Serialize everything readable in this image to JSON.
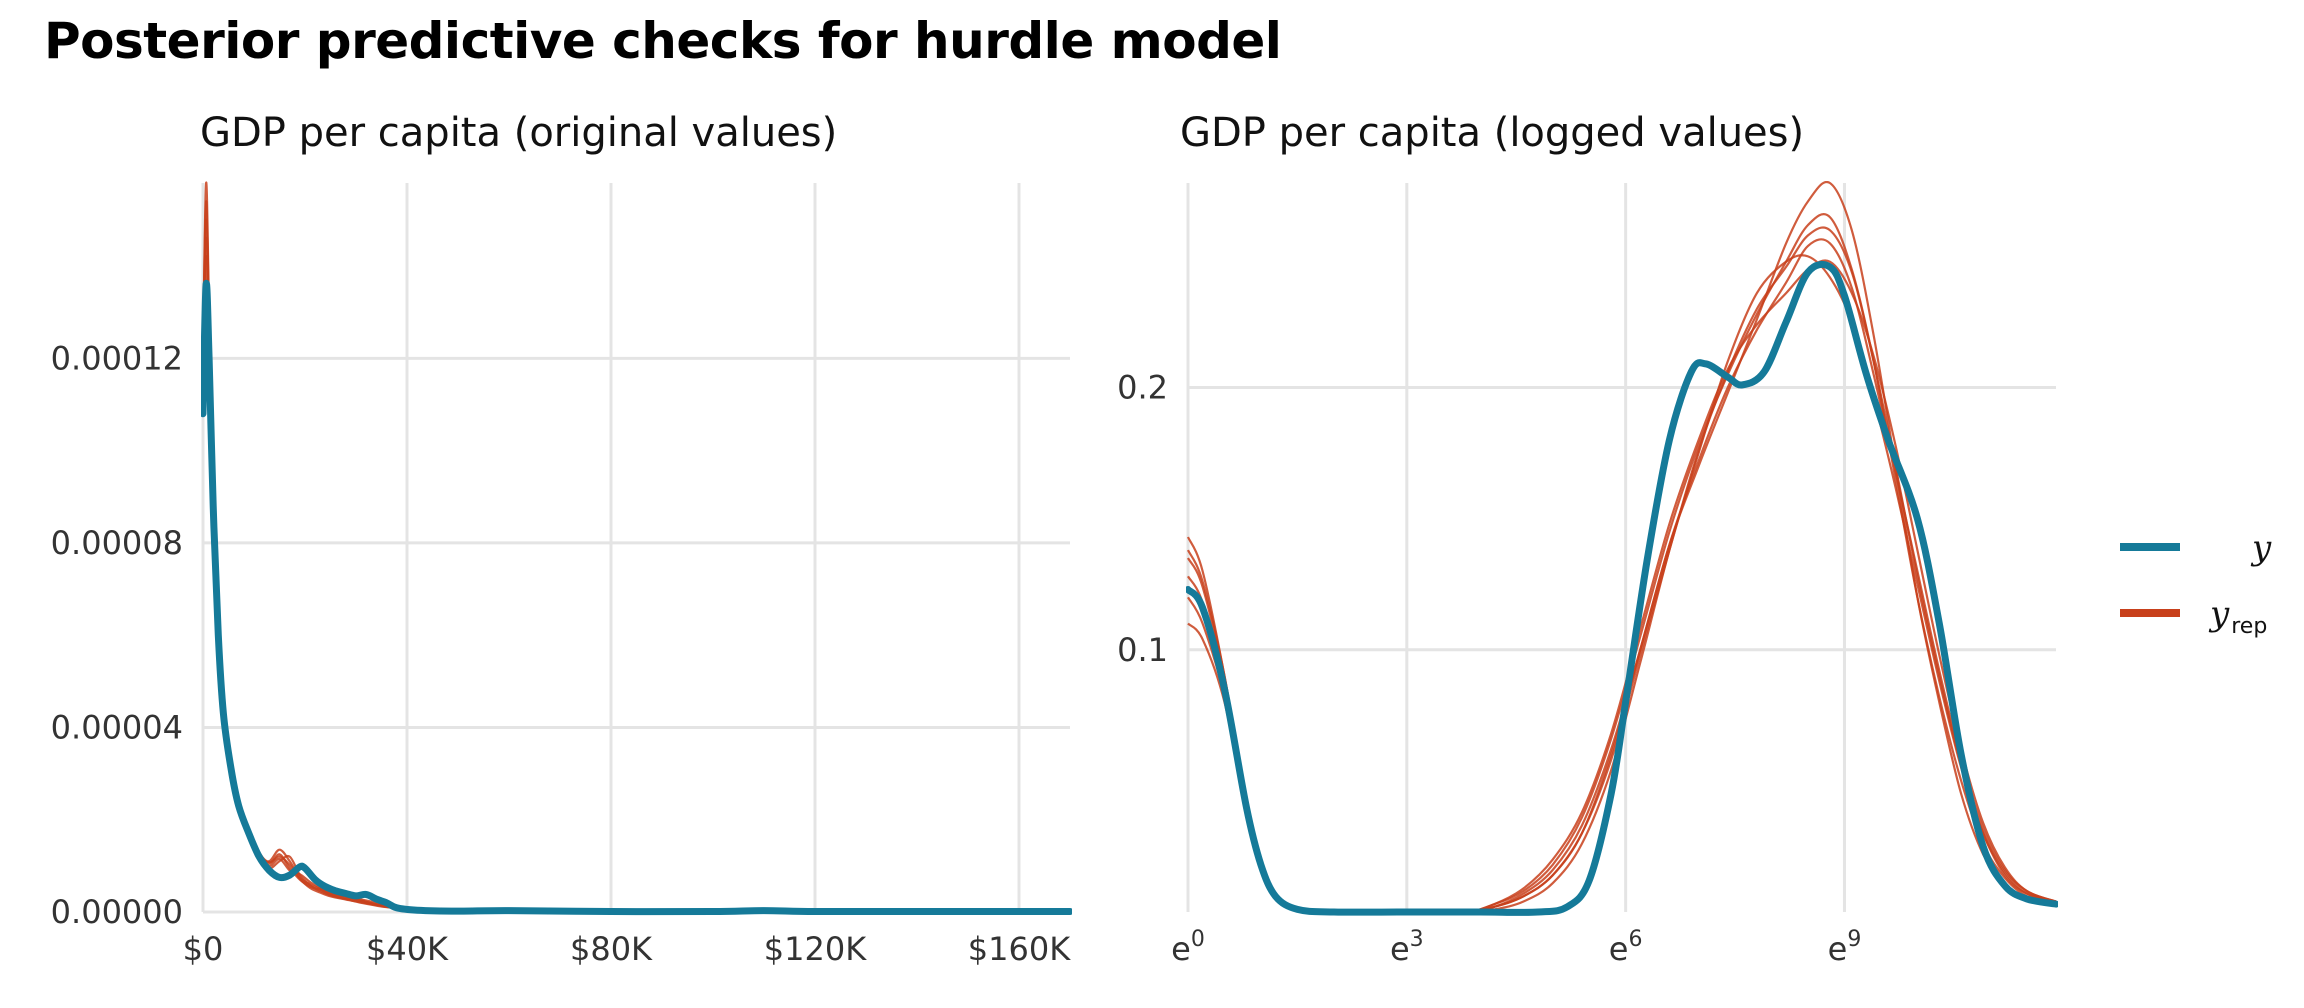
{
  "title": "Posterior predictive checks for hurdle model",
  "colors": {
    "y": "#157a99",
    "yrep": "#c8401b",
    "grid": "#e4e4e4"
  },
  "legend": {
    "position": "right",
    "items": [
      {
        "key": "y",
        "label": "y",
        "subscript": ""
      },
      {
        "key": "yrep",
        "label": "y",
        "subscript": "rep"
      }
    ]
  },
  "chart_data": [
    {
      "type": "line",
      "subtitle": "GDP per capita (original values)",
      "xlabel": "",
      "ylabel": "",
      "xlim": [
        0,
        170000
      ],
      "ylim": [
        0,
        0.000158
      ],
      "grid": true,
      "x_ticks": [
        {
          "value": 0,
          "label": "$0"
        },
        {
          "value": 40000,
          "label": "$40K"
        },
        {
          "value": 80000,
          "label": "$80K"
        },
        {
          "value": 120000,
          "label": "$120K"
        },
        {
          "value": 160000,
          "label": "$160K"
        }
      ],
      "y_ticks": [
        {
          "value": 0,
          "label": "0.00000"
        },
        {
          "value": 4e-05,
          "label": "0.00004"
        },
        {
          "value": 8e-05,
          "label": "0.00008"
        },
        {
          "value": 0.00012,
          "label": "0.00012"
        }
      ],
      "series_y": {
        "name": "y",
        "x": [
          0,
          600,
          1200,
          2000,
          3000,
          4000,
          5500,
          7000,
          9000,
          11000,
          13000,
          15000,
          17000,
          19000,
          20000,
          22000,
          24000,
          26000,
          28000,
          30000,
          32000,
          34000,
          36000,
          38000,
          42000,
          50000,
          60000,
          80000,
          100000,
          110000,
          120000,
          140000,
          170000
        ],
        "values": [
          0.000108,
          0.000136,
          0.00012,
          8.8e-05,
          6e-05,
          4.3e-05,
          3.1e-05,
          2.3e-05,
          1.7e-05,
          1.2e-05,
          9e-06,
          7.5e-06,
          8e-06,
          9.8e-06,
          9.5e-06,
          7e-06,
          5.5e-06,
          4.6e-06,
          4e-06,
          3.5e-06,
          3.8e-06,
          2.8e-06,
          2e-06,
          9e-07,
          4e-07,
          2e-07,
          3e-07,
          1e-07,
          1e-07,
          3e-07,
          1e-07,
          1e-07,
          1e-07
        ]
      },
      "series_yrep": [
        {
          "x": [
            0,
            600,
            1200,
            2000,
            3000,
            4000,
            5500,
            7000,
            9000,
            11000,
            13000,
            15000,
            17000,
            19000,
            21000,
            23000,
            25000,
            28000,
            31000,
            35000,
            40000,
            50000,
            70000,
            100000,
            170000
          ],
          "values": [
            0.00012,
            0.000158,
            0.00013,
            9.2e-05,
            6.2e-05,
            4.4e-05,
            3.2e-05,
            2.4e-05,
            1.8e-05,
            1.3e-05,
            1.05e-05,
            1.25e-05,
            9.5e-06,
            7e-06,
            5.5e-06,
            4.8e-06,
            3.8e-06,
            3e-06,
            2.4e-06,
            1.4e-06,
            6e-07,
            3e-07,
            1e-07,
            1e-07,
            1e-07
          ]
        },
        {
          "x": [
            0,
            600,
            1200,
            2000,
            3000,
            4000,
            5500,
            7000,
            9000,
            11000,
            13000,
            15000,
            17000,
            19000,
            21000,
            23000,
            25000,
            28000,
            31000,
            35000,
            40000,
            50000,
            70000,
            100000,
            170000
          ],
          "values": [
            0.000118,
            0.00015,
            0.000126,
            9e-05,
            6.1e-05,
            4.3e-05,
            3.1e-05,
            2.3e-05,
            1.7e-05,
            1.2e-05,
            1.1e-05,
            1.35e-05,
            1.1e-05,
            7.5e-06,
            6e-06,
            5e-06,
            4e-06,
            3.3e-06,
            2.5e-06,
            1.5e-06,
            7e-07,
            4e-07,
            2e-07,
            1e-07,
            1e-07
          ]
        },
        {
          "x": [
            0,
            600,
            1200,
            2000,
            3000,
            4000,
            5500,
            7000,
            9000,
            11000,
            13000,
            15000,
            17000,
            19000,
            21000,
            23000,
            25000,
            28000,
            31000,
            35000,
            40000,
            50000,
            70000,
            100000,
            170000
          ],
          "values": [
            0.000112,
            0.000142,
            0.000122,
            8.9e-05,
            6e-05,
            4.2e-05,
            3e-05,
            2.2e-05,
            1.65e-05,
            1.2e-05,
            9.5e-06,
            1.1e-05,
            1.2e-05,
            8e-06,
            5.8e-06,
            4.5e-06,
            3.6e-06,
            2.8e-06,
            2e-06,
            1.2e-06,
            6e-07,
            3e-07,
            1e-07,
            1e-07,
            1e-07
          ]
        },
        {
          "x": [
            0,
            600,
            1200,
            2000,
            3000,
            4000,
            5500,
            7000,
            9000,
            11000,
            13000,
            15000,
            17000,
            19000,
            21000,
            23000,
            25000,
            28000,
            31000,
            35000,
            40000,
            50000,
            70000,
            100000,
            170000
          ],
          "values": [
            0.000115,
            0.000146,
            0.000124,
            8.9e-05,
            6.1e-05,
            4.3e-05,
            3.1e-05,
            2.3e-05,
            1.7e-05,
            1.25e-05,
            1e-05,
            1.15e-05,
            9e-06,
            8.2e-06,
            6.5e-06,
            5.2e-06,
            4.2e-06,
            3.4e-06,
            2.7e-06,
            1.8e-06,
            8e-07,
            4e-07,
            2e-07,
            1e-07,
            1e-07
          ]
        },
        {
          "x": [
            0,
            600,
            1200,
            2000,
            3000,
            4000,
            5500,
            7000,
            9000,
            11000,
            13000,
            15000,
            17000,
            19000,
            21000,
            23000,
            25000,
            28000,
            31000,
            35000,
            40000,
            50000,
            70000,
            100000,
            170000
          ],
          "values": [
            0.000121,
            0.000154,
            0.000128,
            9.1e-05,
            6.2e-05,
            4.4e-05,
            3.2e-05,
            2.4e-05,
            1.75e-05,
            1.28e-05,
            1.08e-05,
            1.2e-05,
            1.02e-05,
            7.2e-06,
            5.2e-06,
            4.2e-06,
            3.4e-06,
            2.7e-06,
            2.1e-06,
            1.3e-06,
            6e-07,
            3e-07,
            1e-07,
            1e-07,
            1e-07
          ]
        }
      ]
    },
    {
      "type": "line",
      "subtitle": "GDP per capita (logged values)",
      "xlabel": "",
      "ylabel": "",
      "xlim": [
        0,
        11.9
      ],
      "ylim": [
        0,
        0.278
      ],
      "x_scale": "log (e-based tick labels)",
      "grid": true,
      "x_ticks": [
        {
          "value": 0,
          "label": "e",
          "exponent": "0"
        },
        {
          "value": 3,
          "label": "e",
          "exponent": "3"
        },
        {
          "value": 6,
          "label": "e",
          "exponent": "6"
        },
        {
          "value": 9,
          "label": "e",
          "exponent": "9"
        }
      ],
      "y_ticks": [
        {
          "value": 0.1,
          "label": "0.1"
        },
        {
          "value": 0.2,
          "label": "0.2"
        }
      ],
      "series_y": {
        "name": "y",
        "x": [
          0,
          0.2,
          0.5,
          0.8,
          1.0,
          1.2,
          1.5,
          2.0,
          3.0,
          4.0,
          4.8,
          5.2,
          5.5,
          5.8,
          6.0,
          6.3,
          6.6,
          6.9,
          7.1,
          7.4,
          7.6,
          7.9,
          8.2,
          8.5,
          8.8,
          9.0,
          9.3,
          9.6,
          10.0,
          10.3,
          10.6,
          10.9,
          11.2,
          11.5,
          11.9
        ],
        "values": [
          0.123,
          0.116,
          0.085,
          0.04,
          0.018,
          0.006,
          0.001,
          0.0,
          0.0,
          0.0,
          0.0,
          0.002,
          0.012,
          0.045,
          0.08,
          0.135,
          0.18,
          0.206,
          0.209,
          0.204,
          0.201,
          0.206,
          0.225,
          0.244,
          0.246,
          0.235,
          0.205,
          0.18,
          0.15,
          0.11,
          0.06,
          0.025,
          0.01,
          0.005,
          0.003
        ]
      },
      "series_yrep": [
        {
          "x": [
            0,
            0.2,
            0.5,
            0.8,
            1.0,
            1.2,
            1.5,
            2.0,
            3.0,
            3.8,
            4.2,
            4.6,
            5.0,
            5.4,
            5.8,
            6.2,
            6.6,
            7.0,
            7.4,
            7.8,
            8.2,
            8.5,
            8.8,
            9.1,
            9.4,
            9.7,
            10.0,
            10.3,
            10.6,
            10.9,
            11.2,
            11.5,
            11.9
          ],
          "values": [
            0.143,
            0.13,
            0.09,
            0.042,
            0.018,
            0.006,
            0.001,
            0.0,
            0.0,
            0.0,
            0.002,
            0.006,
            0.014,
            0.03,
            0.06,
            0.1,
            0.14,
            0.17,
            0.198,
            0.226,
            0.255,
            0.271,
            0.278,
            0.26,
            0.22,
            0.17,
            0.12,
            0.08,
            0.045,
            0.022,
            0.01,
            0.005,
            0.003
          ]
        },
        {
          "x": [
            0,
            0.2,
            0.5,
            0.8,
            1.0,
            1.2,
            1.5,
            2.0,
            3.0,
            3.8,
            4.2,
            4.6,
            5.0,
            5.4,
            5.8,
            6.2,
            6.6,
            7.0,
            7.4,
            7.8,
            8.2,
            8.5,
            8.8,
            9.1,
            9.4,
            9.7,
            10.0,
            10.3,
            10.6,
            10.9,
            11.2,
            11.5,
            11.9
          ],
          "values": [
            0.11,
            0.104,
            0.08,
            0.038,
            0.016,
            0.005,
            0.001,
            0.0,
            0.0,
            0.0,
            0.003,
            0.008,
            0.018,
            0.036,
            0.066,
            0.105,
            0.145,
            0.178,
            0.205,
            0.228,
            0.248,
            0.262,
            0.265,
            0.245,
            0.21,
            0.165,
            0.12,
            0.082,
            0.05,
            0.026,
            0.013,
            0.006,
            0.003
          ]
        },
        {
          "x": [
            0,
            0.2,
            0.5,
            0.8,
            1.0,
            1.2,
            1.5,
            2.0,
            3.0,
            3.8,
            4.2,
            4.6,
            5.0,
            5.4,
            5.8,
            6.2,
            6.6,
            7.0,
            7.4,
            7.8,
            8.2,
            8.5,
            8.8,
            9.1,
            9.4,
            9.7,
            10.0,
            10.3,
            10.6,
            10.9,
            11.2,
            11.5,
            11.9
          ],
          "values": [
            0.135,
            0.124,
            0.088,
            0.04,
            0.017,
            0.006,
            0.001,
            0.0,
            0.0,
            0.0,
            0.001,
            0.004,
            0.011,
            0.026,
            0.054,
            0.095,
            0.138,
            0.175,
            0.21,
            0.236,
            0.248,
            0.25,
            0.242,
            0.225,
            0.196,
            0.162,
            0.125,
            0.088,
            0.055,
            0.03,
            0.014,
            0.007,
            0.004
          ]
        },
        {
          "x": [
            0,
            0.2,
            0.5,
            0.8,
            1.0,
            1.2,
            1.5,
            2.0,
            3.0,
            3.8,
            4.2,
            4.6,
            5.0,
            5.4,
            5.8,
            6.2,
            6.6,
            7.0,
            7.4,
            7.8,
            8.2,
            8.5,
            8.8,
            9.1,
            9.4,
            9.7,
            10.0,
            10.3,
            10.6,
            10.9,
            11.2,
            11.5,
            11.9
          ],
          "values": [
            0.128,
            0.118,
            0.086,
            0.04,
            0.017,
            0.006,
            0.001,
            0.0,
            0.0,
            0.0,
            0.002,
            0.007,
            0.016,
            0.033,
            0.062,
            0.1,
            0.14,
            0.172,
            0.2,
            0.222,
            0.24,
            0.254,
            0.255,
            0.238,
            0.205,
            0.168,
            0.13,
            0.092,
            0.058,
            0.032,
            0.016,
            0.008,
            0.004
          ]
        },
        {
          "x": [
            0,
            0.2,
            0.5,
            0.8,
            1.0,
            1.2,
            1.5,
            2.0,
            3.0,
            3.8,
            4.2,
            4.6,
            5.0,
            5.4,
            5.8,
            6.2,
            6.6,
            7.0,
            7.4,
            7.8,
            8.2,
            8.5,
            8.8,
            9.1,
            9.4,
            9.7,
            10.0,
            10.3,
            10.6,
            10.9,
            11.2,
            11.5,
            11.9
          ],
          "values": [
            0.12,
            0.11,
            0.082,
            0.039,
            0.016,
            0.005,
            0.001,
            0.0,
            0.0,
            0.0,
            0.002,
            0.006,
            0.014,
            0.03,
            0.058,
            0.098,
            0.138,
            0.176,
            0.206,
            0.23,
            0.246,
            0.258,
            0.26,
            0.244,
            0.21,
            0.17,
            0.128,
            0.09,
            0.056,
            0.03,
            0.015,
            0.007,
            0.004
          ]
        },
        {
          "x": [
            0,
            0.2,
            0.5,
            0.8,
            1.0,
            1.2,
            1.5,
            2.0,
            3.0,
            3.8,
            4.2,
            4.6,
            5.0,
            5.4,
            5.8,
            6.2,
            6.6,
            7.0,
            7.4,
            7.8,
            8.2,
            8.5,
            8.8,
            9.1,
            9.4,
            9.7,
            10.0,
            10.3,
            10.6,
            10.9,
            11.2,
            11.5,
            11.9
          ],
          "values": [
            0.138,
            0.126,
            0.09,
            0.041,
            0.018,
            0.006,
            0.001,
            0.0,
            0.0,
            0.0,
            0.003,
            0.009,
            0.02,
            0.038,
            0.068,
            0.108,
            0.148,
            0.18,
            0.207,
            0.224,
            0.236,
            0.245,
            0.248,
            0.236,
            0.212,
            0.178,
            0.138,
            0.098,
            0.062,
            0.034,
            0.017,
            0.008,
            0.004
          ]
        }
      ]
    }
  ]
}
